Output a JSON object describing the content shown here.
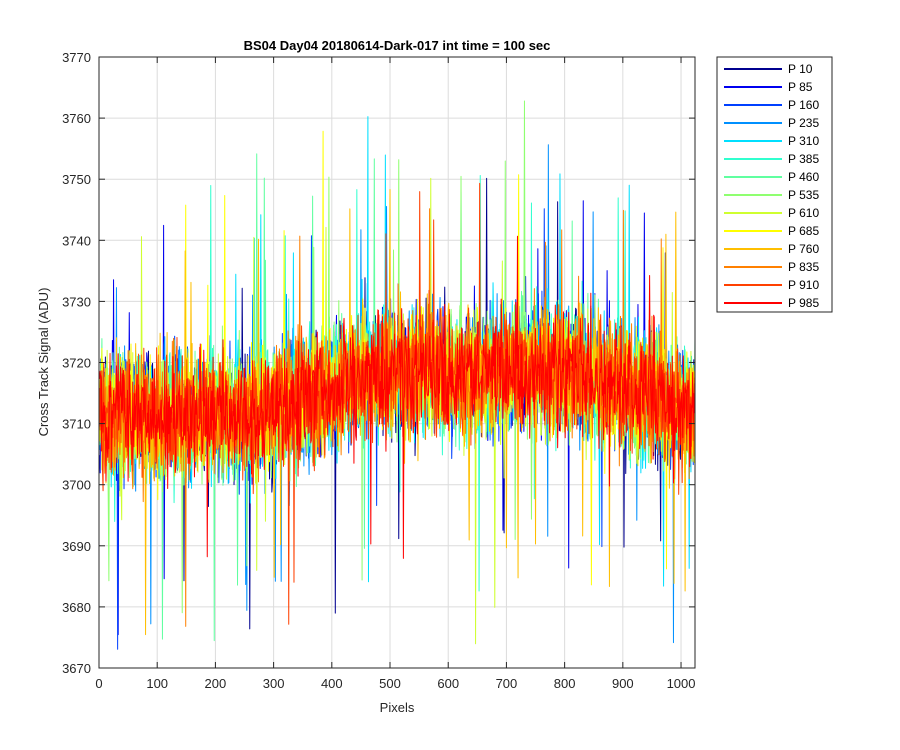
{
  "chart_data": {
    "type": "line",
    "title": "BS04 Day04 20180614-Dark-017 int time = 100 sec",
    "xlabel": "Pixels",
    "ylabel": "Cross Track Signal (ADU)",
    "xlim": [
      0,
      1024
    ],
    "ylim": [
      3670,
      3770
    ],
    "xticks": [
      0,
      100,
      200,
      300,
      400,
      500,
      600,
      700,
      800,
      900,
      1000
    ],
    "yticks": [
      3670,
      3680,
      3690,
      3700,
      3710,
      3720,
      3730,
      3740,
      3750,
      3760,
      3770
    ],
    "grid": true,
    "legend_position": "outside-right",
    "profile": {
      "pixels": [
        0,
        100,
        200,
        300,
        400,
        500,
        600,
        700,
        800,
        900,
        1024
      ],
      "mean_signal": [
        3712,
        3711,
        3711,
        3712,
        3716,
        3719,
        3718,
        3719,
        3719,
        3716,
        3712
      ],
      "noise_spread": 9
    },
    "series": [
      {
        "name": "P 10",
        "color": "#00008f"
      },
      {
        "name": "P 85",
        "color": "#0000ef"
      },
      {
        "name": "P 160",
        "color": "#0040ff"
      },
      {
        "name": "P 235",
        "color": "#0090ff"
      },
      {
        "name": "P 310",
        "color": "#00dfff"
      },
      {
        "name": "P 385",
        "color": "#30ffcf"
      },
      {
        "name": "P 460",
        "color": "#60ffa0"
      },
      {
        "name": "P 535",
        "color": "#8fff70"
      },
      {
        "name": "P 610",
        "color": "#cfff30"
      },
      {
        "name": "P 685",
        "color": "#ffff00"
      },
      {
        "name": "P 760",
        "color": "#ffbf00"
      },
      {
        "name": "P 835",
        "color": "#ff8000"
      },
      {
        "name": "P 910",
        "color": "#ff4000"
      },
      {
        "name": "P 985",
        "color": "#ff0000"
      }
    ]
  }
}
